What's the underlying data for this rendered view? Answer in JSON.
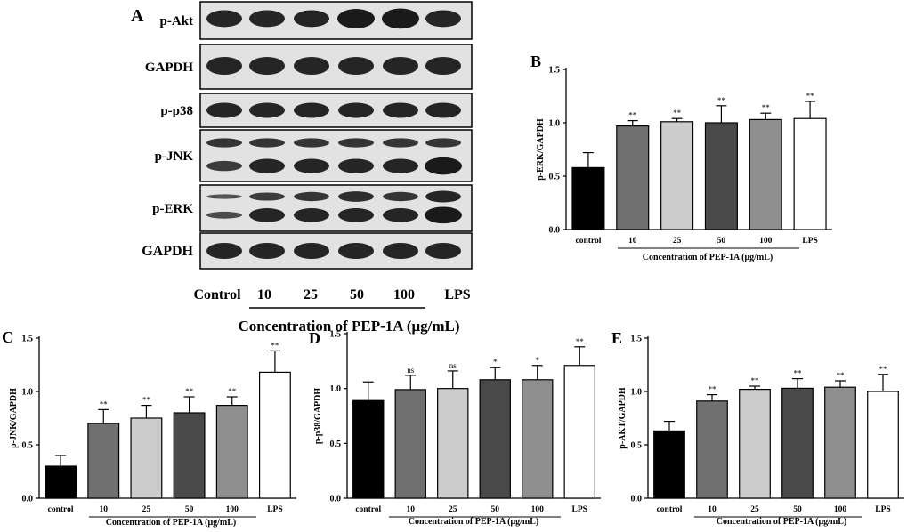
{
  "blot": {
    "panel_letter": "A",
    "rows": [
      "p-Akt",
      "GAPDH",
      "p-p38",
      "p-JNK",
      "p-ERK",
      "GAPDH"
    ],
    "lanes": [
      "Control",
      "10",
      "25",
      "50",
      "100",
      "LPS"
    ],
    "xtitle": "Concentration of PEP-1A (μg/mL)"
  },
  "chart_data": [
    {
      "panel": "B",
      "type": "bar",
      "categories": [
        "control",
        "10",
        "25",
        "50",
        "100",
        "LPS"
      ],
      "values": [
        0.58,
        0.97,
        1.01,
        1.0,
        1.03,
        1.04
      ],
      "errors": [
        0.14,
        0.05,
        0.03,
        0.16,
        0.06,
        0.16
      ],
      "significance": [
        "",
        "**",
        "**",
        "**",
        "**",
        "**"
      ],
      "ylabel": "p-ERK/GAPDH",
      "xlabel": "Concentration of PEP-1A (μg/mL)",
      "ylim": [
        0,
        1.5
      ],
      "yticks": [
        "0.0",
        "0.5",
        "1.0",
        "1.5"
      ],
      "colors": [
        "#000000",
        "#707070",
        "#cccccc",
        "#4a4a4a",
        "#8f8f8f",
        "#ffffff"
      ]
    },
    {
      "panel": "C",
      "type": "bar",
      "categories": [
        "control",
        "10",
        "25",
        "50",
        "100",
        "LPS"
      ],
      "values": [
        0.3,
        0.7,
        0.75,
        0.8,
        0.87,
        1.18
      ],
      "errors": [
        0.1,
        0.13,
        0.12,
        0.15,
        0.08,
        0.2
      ],
      "significance": [
        "",
        "**",
        "**",
        "**",
        "**",
        "**"
      ],
      "ylabel": "p-JNK/GAPDH",
      "xlabel": "Concentration of PEP-1A (μg/mL)",
      "ylim": [
        0,
        1.5
      ],
      "yticks": [
        "0.0",
        "0.5",
        "1.0",
        "1.5"
      ],
      "colors": [
        "#000000",
        "#707070",
        "#cccccc",
        "#4a4a4a",
        "#8f8f8f",
        "#ffffff"
      ]
    },
    {
      "panel": "D",
      "type": "bar",
      "categories": [
        "control",
        "10",
        "25",
        "50",
        "100",
        "LPS"
      ],
      "values": [
        0.89,
        0.99,
        1.0,
        1.08,
        1.08,
        1.21
      ],
      "errors": [
        0.17,
        0.13,
        0.16,
        0.11,
        0.13,
        0.17
      ],
      "significance": [
        "",
        "ns",
        "ns",
        "*",
        "*",
        "**"
      ],
      "ylabel": "p-p38/GAPDH",
      "xlabel": "Concentration of PEP-1A (μg/mL)",
      "ylim": [
        0,
        1.5
      ],
      "yticks": [
        "0.0",
        "0.5",
        "1.0",
        "1.5"
      ],
      "colors": [
        "#000000",
        "#707070",
        "#cccccc",
        "#4a4a4a",
        "#8f8f8f",
        "#ffffff"
      ]
    },
    {
      "panel": "E",
      "type": "bar",
      "categories": [
        "control",
        "10",
        "25",
        "50",
        "100",
        "LPS"
      ],
      "values": [
        0.63,
        0.91,
        1.02,
        1.03,
        1.04,
        1.0
      ],
      "errors": [
        0.09,
        0.06,
        0.03,
        0.09,
        0.06,
        0.16
      ],
      "significance": [
        "",
        "**",
        "**",
        "**",
        "**",
        "**"
      ],
      "ylabel": "p-AKT/GAPDH",
      "xlabel": "Concentration of PEP-1A (μg/mL)",
      "ylim": [
        0,
        1.5
      ],
      "yticks": [
        "0.0",
        "0.5",
        "1.0",
        "1.5"
      ],
      "colors": [
        "#000000",
        "#707070",
        "#cccccc",
        "#4a4a4a",
        "#8f8f8f",
        "#ffffff"
      ]
    }
  ]
}
